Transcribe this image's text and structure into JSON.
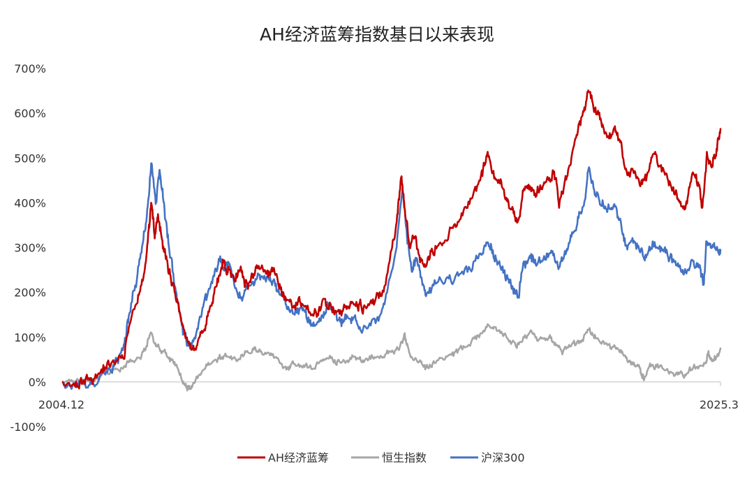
{
  "chart_data": {
    "type": "line",
    "title": "AH经济蓝筹指数基日以来表现",
    "xlabel": "",
    "ylabel": "",
    "x_tick_labels": [
      "2004.12",
      "2025.3"
    ],
    "x_range": [
      2004.92,
      2025.17
    ],
    "y_ticks": [
      -100,
      0,
      100,
      200,
      300,
      400,
      500,
      600,
      700
    ],
    "y_tick_labels": [
      "-100%",
      "0%",
      "100%",
      "200%",
      "300%",
      "400%",
      "500%",
      "600%",
      "700%"
    ],
    "ylim": [
      -100,
      700
    ],
    "grid": false,
    "legend_position": "bottom",
    "series": [
      {
        "name": "AH经济蓝筹",
        "color": "#C00000",
        "points": [
          [
            2004.92,
            0
          ],
          [
            2005.3,
            -5
          ],
          [
            2005.6,
            5
          ],
          [
            2005.9,
            10
          ],
          [
            2006.2,
            35
          ],
          [
            2006.5,
            45
          ],
          [
            2006.8,
            60
          ],
          [
            2006.95,
            125
          ],
          [
            2007.2,
            180
          ],
          [
            2007.4,
            230
          ],
          [
            2007.55,
            330
          ],
          [
            2007.65,
            400
          ],
          [
            2007.75,
            320
          ],
          [
            2007.85,
            375
          ],
          [
            2008.0,
            300
          ],
          [
            2008.15,
            260
          ],
          [
            2008.3,
            220
          ],
          [
            2008.5,
            160
          ],
          [
            2008.7,
            100
          ],
          [
            2008.9,
            65
          ],
          [
            2009.1,
            90
          ],
          [
            2009.3,
            130
          ],
          [
            2009.5,
            185
          ],
          [
            2009.7,
            225
          ],
          [
            2009.85,
            265
          ],
          [
            2010.0,
            245
          ],
          [
            2010.2,
            230
          ],
          [
            2010.4,
            245
          ],
          [
            2010.6,
            210
          ],
          [
            2010.8,
            235
          ],
          [
            2010.95,
            260
          ],
          [
            2011.2,
            245
          ],
          [
            2011.4,
            245
          ],
          [
            2011.6,
            215
          ],
          [
            2011.8,
            180
          ],
          [
            2012.0,
            170
          ],
          [
            2012.2,
            180
          ],
          [
            2012.4,
            165
          ],
          [
            2012.6,
            150
          ],
          [
            2012.8,
            155
          ],
          [
            2013.0,
            185
          ],
          [
            2013.2,
            165
          ],
          [
            2013.4,
            150
          ],
          [
            2013.6,
            165
          ],
          [
            2013.8,
            180
          ],
          [
            2014.0,
            170
          ],
          [
            2014.2,
            165
          ],
          [
            2014.5,
            175
          ],
          [
            2014.8,
            205
          ],
          [
            2015.0,
            280
          ],
          [
            2015.2,
            360
          ],
          [
            2015.35,
            470
          ],
          [
            2015.45,
            380
          ],
          [
            2015.6,
            300
          ],
          [
            2015.75,
            330
          ],
          [
            2015.9,
            280
          ],
          [
            2016.1,
            260
          ],
          [
            2016.3,
            290
          ],
          [
            2016.6,
            310
          ],
          [
            2016.9,
            340
          ],
          [
            2017.2,
            370
          ],
          [
            2017.5,
            410
          ],
          [
            2017.8,
            460
          ],
          [
            2018.0,
            510
          ],
          [
            2018.2,
            460
          ],
          [
            2018.4,
            440
          ],
          [
            2018.6,
            400
          ],
          [
            2018.8,
            380
          ],
          [
            2018.95,
            350
          ],
          [
            2019.1,
            430
          ],
          [
            2019.3,
            440
          ],
          [
            2019.5,
            420
          ],
          [
            2019.7,
            440
          ],
          [
            2019.9,
            450
          ],
          [
            2020.05,
            470
          ],
          [
            2020.2,
            400
          ],
          [
            2020.4,
            450
          ],
          [
            2020.6,
            500
          ],
          [
            2020.8,
            570
          ],
          [
            2021.0,
            610
          ],
          [
            2021.1,
            660
          ],
          [
            2021.3,
            610
          ],
          [
            2021.5,
            580
          ],
          [
            2021.7,
            550
          ],
          [
            2021.9,
            560
          ],
          [
            2022.1,
            530
          ],
          [
            2022.3,
            460
          ],
          [
            2022.5,
            470
          ],
          [
            2022.7,
            450
          ],
          [
            2022.9,
            460
          ],
          [
            2023.1,
            510
          ],
          [
            2023.3,
            480
          ],
          [
            2023.5,
            460
          ],
          [
            2023.7,
            430
          ],
          [
            2023.9,
            400
          ],
          [
            2024.1,
            390
          ],
          [
            2024.3,
            460
          ],
          [
            2024.5,
            440
          ],
          [
            2024.6,
            390
          ],
          [
            2024.75,
            500
          ],
          [
            2024.9,
            480
          ],
          [
            2025.05,
            520
          ],
          [
            2025.17,
            565
          ]
        ]
      },
      {
        "name": "恒生指数",
        "color": "#A6A6A6",
        "points": [
          [
            2004.92,
            0
          ],
          [
            2005.3,
            2
          ],
          [
            2005.6,
            5
          ],
          [
            2005.9,
            8
          ],
          [
            2006.2,
            15
          ],
          [
            2006.5,
            25
          ],
          [
            2006.8,
            30
          ],
          [
            2007.0,
            45
          ],
          [
            2007.3,
            55
          ],
          [
            2007.5,
            80
          ],
          [
            2007.65,
            110
          ],
          [
            2007.8,
            85
          ],
          [
            2008.0,
            70
          ],
          [
            2008.2,
            55
          ],
          [
            2008.4,
            40
          ],
          [
            2008.6,
            0
          ],
          [
            2008.75,
            -15
          ],
          [
            2008.9,
            -5
          ],
          [
            2009.1,
            10
          ],
          [
            2009.4,
            40
          ],
          [
            2009.7,
            55
          ],
          [
            2009.95,
            60
          ],
          [
            2010.2,
            50
          ],
          [
            2010.5,
            60
          ],
          [
            2010.8,
            70
          ],
          [
            2011.0,
            72
          ],
          [
            2011.3,
            65
          ],
          [
            2011.6,
            45
          ],
          [
            2011.8,
            25
          ],
          [
            2012.0,
            40
          ],
          [
            2012.3,
            35
          ],
          [
            2012.6,
            30
          ],
          [
            2012.9,
            50
          ],
          [
            2013.2,
            50
          ],
          [
            2013.5,
            40
          ],
          [
            2013.8,
            55
          ],
          [
            2014.1,
            50
          ],
          [
            2014.4,
            55
          ],
          [
            2014.7,
            60
          ],
          [
            2015.0,
            65
          ],
          [
            2015.3,
            80
          ],
          [
            2015.45,
            100
          ],
          [
            2015.6,
            60
          ],
          [
            2015.9,
            45
          ],
          [
            2016.1,
            30
          ],
          [
            2016.4,
            45
          ],
          [
            2016.8,
            55
          ],
          [
            2017.1,
            70
          ],
          [
            2017.5,
            90
          ],
          [
            2017.8,
            110
          ],
          [
            2018.05,
            130
          ],
          [
            2018.3,
            115
          ],
          [
            2018.6,
            95
          ],
          [
            2018.9,
            80
          ],
          [
            2019.1,
            100
          ],
          [
            2019.35,
            110
          ],
          [
            2019.6,
            90
          ],
          [
            2019.9,
            100
          ],
          [
            2020.1,
            85
          ],
          [
            2020.3,
            70
          ],
          [
            2020.6,
            80
          ],
          [
            2020.9,
            95
          ],
          [
            2021.1,
            115
          ],
          [
            2021.3,
            105
          ],
          [
            2021.6,
            85
          ],
          [
            2021.9,
            75
          ],
          [
            2022.1,
            65
          ],
          [
            2022.3,
            50
          ],
          [
            2022.5,
            45
          ],
          [
            2022.7,
            30
          ],
          [
            2022.82,
            5
          ],
          [
            2023.0,
            40
          ],
          [
            2023.2,
            35
          ],
          [
            2023.5,
            25
          ],
          [
            2023.8,
            20
          ],
          [
            2024.05,
            15
          ],
          [
            2024.3,
            30
          ],
          [
            2024.5,
            35
          ],
          [
            2024.7,
            40
          ],
          [
            2024.8,
            60
          ],
          [
            2024.95,
            45
          ],
          [
            2025.17,
            75
          ]
        ]
      },
      {
        "name": "沪深300",
        "color": "#4472C4",
        "points": [
          [
            2004.92,
            0
          ],
          [
            2005.3,
            -8
          ],
          [
            2005.6,
            -10
          ],
          [
            2005.9,
            -5
          ],
          [
            2006.2,
            15
          ],
          [
            2006.5,
            35
          ],
          [
            2006.8,
            75
          ],
          [
            2006.95,
            150
          ],
          [
            2007.2,
            230
          ],
          [
            2007.4,
            320
          ],
          [
            2007.55,
            400
          ],
          [
            2007.65,
            490
          ],
          [
            2007.78,
            400
          ],
          [
            2007.9,
            480
          ],
          [
            2008.05,
            380
          ],
          [
            2008.2,
            300
          ],
          [
            2008.4,
            200
          ],
          [
            2008.6,
            120
          ],
          [
            2008.8,
            75
          ],
          [
            2009.0,
            90
          ],
          [
            2009.2,
            160
          ],
          [
            2009.4,
            200
          ],
          [
            2009.6,
            240
          ],
          [
            2009.75,
            280
          ],
          [
            2009.9,
            250
          ],
          [
            2010.05,
            270
          ],
          [
            2010.3,
            200
          ],
          [
            2010.5,
            190
          ],
          [
            2010.7,
            220
          ],
          [
            2010.95,
            240
          ],
          [
            2011.2,
            230
          ],
          [
            2011.4,
            215
          ],
          [
            2011.6,
            195
          ],
          [
            2011.8,
            170
          ],
          [
            2012.0,
            150
          ],
          [
            2012.3,
            160
          ],
          [
            2012.5,
            140
          ],
          [
            2012.7,
            130
          ],
          [
            2012.9,
            145
          ],
          [
            2013.1,
            175
          ],
          [
            2013.3,
            150
          ],
          [
            2013.5,
            130
          ],
          [
            2013.7,
            150
          ],
          [
            2013.9,
            135
          ],
          [
            2014.1,
            120
          ],
          [
            2014.4,
            125
          ],
          [
            2014.7,
            140
          ],
          [
            2014.95,
            210
          ],
          [
            2015.2,
            300
          ],
          [
            2015.38,
            440
          ],
          [
            2015.5,
            340
          ],
          [
            2015.65,
            250
          ],
          [
            2015.8,
            280
          ],
          [
            2015.95,
            240
          ],
          [
            2016.1,
            200
          ],
          [
            2016.4,
            215
          ],
          [
            2016.8,
            230
          ],
          [
            2017.1,
            235
          ],
          [
            2017.5,
            260
          ],
          [
            2017.8,
            290
          ],
          [
            2018.0,
            320
          ],
          [
            2018.2,
            280
          ],
          [
            2018.4,
            260
          ],
          [
            2018.6,
            230
          ],
          [
            2018.8,
            210
          ],
          [
            2018.95,
            195
          ],
          [
            2019.1,
            260
          ],
          [
            2019.3,
            280
          ],
          [
            2019.5,
            265
          ],
          [
            2019.8,
            280
          ],
          [
            2020.0,
            300
          ],
          [
            2020.2,
            260
          ],
          [
            2020.4,
            290
          ],
          [
            2020.6,
            330
          ],
          [
            2020.8,
            370
          ],
          [
            2021.0,
            410
          ],
          [
            2021.1,
            480
          ],
          [
            2021.3,
            420
          ],
          [
            2021.5,
            400
          ],
          [
            2021.7,
            390
          ],
          [
            2021.9,
            390
          ],
          [
            2022.1,
            350
          ],
          [
            2022.3,
            300
          ],
          [
            2022.5,
            320
          ],
          [
            2022.7,
            290
          ],
          [
            2022.9,
            280
          ],
          [
            2023.1,
            310
          ],
          [
            2023.3,
            300
          ],
          [
            2023.5,
            290
          ],
          [
            2023.7,
            270
          ],
          [
            2023.9,
            250
          ],
          [
            2024.1,
            240
          ],
          [
            2024.3,
            270
          ],
          [
            2024.5,
            260
          ],
          [
            2024.65,
            220
          ],
          [
            2024.75,
            320
          ],
          [
            2024.9,
            290
          ],
          [
            2025.05,
            300
          ],
          [
            2025.17,
            295
          ]
        ]
      }
    ]
  }
}
